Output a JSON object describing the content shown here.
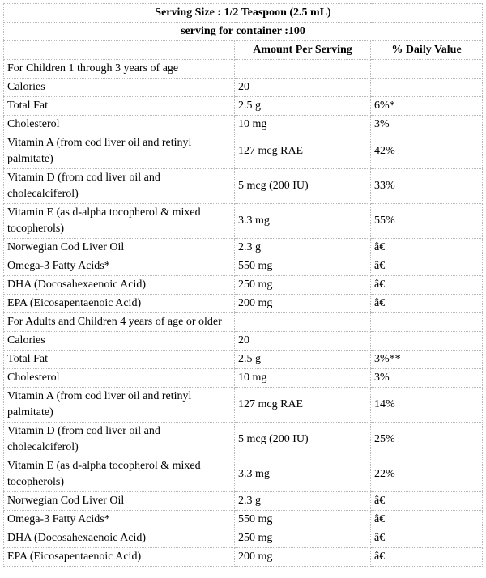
{
  "header": {
    "serving_size": "Serving Size : 1/2 Teaspoon (2.5 mL)",
    "servings_per_container": "serving for container :100",
    "col_amount": "Amount Per Serving",
    "col_dv": "% Daily Value"
  },
  "children": {
    "title": "For Children 1 through 3 years of age",
    "rows": [
      {
        "name": "Calories",
        "amount": "20",
        "dv": ""
      },
      {
        "name": "Total Fat",
        "amount": "2.5 g",
        "dv": "6%*"
      },
      {
        "name": "Cholesterol",
        "amount": "10 mg",
        "dv": "3%"
      },
      {
        "name": "Vitamin A (from cod liver oil and retinyl palmitate)",
        "amount": "127 mcg RAE",
        "dv": "42%"
      },
      {
        "name": "Vitamin D (from cod liver oil and cholecalciferol)",
        "amount": "5 mcg (200 IU)",
        "dv": "33%"
      },
      {
        "name": "Vitamin E (as d-alpha tocopherol & mixed tocopherols)",
        "amount": "3.3 mg",
        "dv": "55%"
      },
      {
        "name": "Norwegian Cod Liver Oil",
        "amount": "2.3 g",
        "dv": "â€"
      },
      {
        "name": "Omega-3 Fatty Acids*",
        "amount": "550 mg",
        "dv": "â€"
      },
      {
        "name": "DHA (Docosahexaenoic Acid)",
        "amount": "250 mg",
        "dv": "â€"
      },
      {
        "name": "EPA (Eicosapentaenoic Acid)",
        "amount": "200 mg",
        "dv": "â€"
      }
    ]
  },
  "adults": {
    "title": "For Adults and Children 4 years of age or older",
    "rows": [
      {
        "name": "Calories",
        "amount": "20",
        "dv": ""
      },
      {
        "name": "Total Fat",
        "amount": "2.5 g",
        "dv": "3%**"
      },
      {
        "name": "Cholesterol",
        "amount": "10 mg",
        "dv": "3%"
      },
      {
        "name": "Vitamin A (from cod liver oil and retinyl palmitate)",
        "amount": "127 mcg RAE",
        "dv": "14%"
      },
      {
        "name": "Vitamin D (from cod liver oil and cholecalciferol)",
        "amount": "5 mcg (200 IU)",
        "dv": "25%"
      },
      {
        "name": "Vitamin E (as d-alpha tocopherol & mixed tocopherols)",
        "amount": "3.3 mg",
        "dv": "22%"
      },
      {
        "name": "Norwegian Cod Liver Oil",
        "amount": "2.3 g",
        "dv": "â€"
      },
      {
        "name": "Omega-3 Fatty Acids*",
        "amount": "550 mg",
        "dv": "â€"
      },
      {
        "name": "DHA (Docosahexaenoic Acid)",
        "amount": "250 mg",
        "dv": "â€"
      },
      {
        "name": "EPA (Eicosapentaenoic Acid)",
        "amount": "200 mg",
        "dv": "â€"
      }
    ]
  }
}
